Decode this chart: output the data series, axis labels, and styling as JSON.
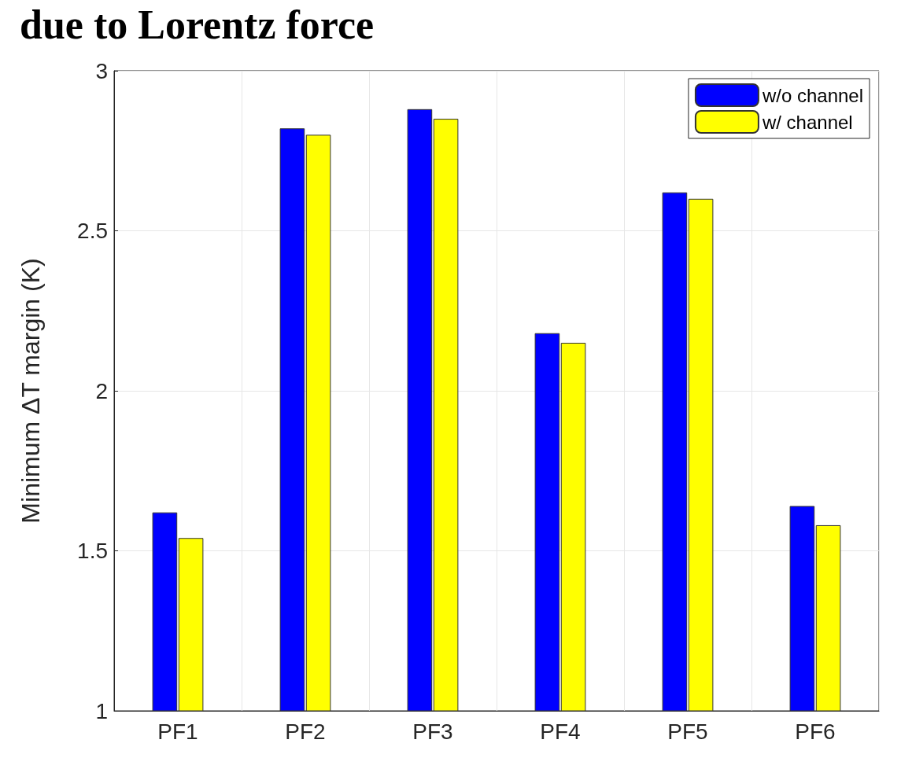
{
  "chart_data": {
    "type": "bar",
    "title": "due to Lorentz force",
    "ylabel": "Minimum ΔT margin (K)",
    "categories": [
      "PF1",
      "PF2",
      "PF3",
      "PF4",
      "PF5",
      "PF6"
    ],
    "series": [
      {
        "name": "w/o channel",
        "color": "#0000ff",
        "values": [
          1.62,
          2.82,
          2.88,
          2.18,
          2.62,
          1.64
        ]
      },
      {
        "name": "w/ channel",
        "color": "#ffff00",
        "values": [
          1.54,
          2.8,
          2.85,
          2.15,
          2.6,
          1.58
        ]
      }
    ],
    "ylim": [
      1,
      3
    ],
    "yticks": [
      1,
      1.5,
      2,
      2.5,
      3
    ],
    "grid": true,
    "legend": "top right"
  }
}
